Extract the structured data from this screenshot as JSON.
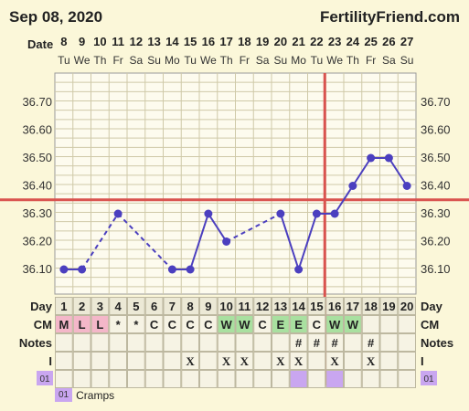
{
  "header": {
    "date_title": "Sep 08, 2020",
    "brand": "FertilityFriend.com"
  },
  "row_labels": {
    "date": "Date",
    "day": "Day",
    "cm": "CM",
    "notes": "Notes",
    "intercourse": "I",
    "symptom_code": "01"
  },
  "colors": {
    "line": "#4b3fbf",
    "coverline": "#d9534f",
    "grid": "#cfc9a8",
    "mucus_m": "#f4b7c9",
    "mucus_l": "#f4b7c9",
    "mucus_w": "#a9e0a0",
    "mucus_e": "#a9e0a0",
    "symptom": "#c9a6f0",
    "background": "#fbf7d9",
    "cell": "#f6f3e4"
  },
  "legend": {
    "code": "01",
    "label": "Cramps"
  },
  "chart_data": {
    "type": "line",
    "dates": [
      "8",
      "9",
      "10",
      "11",
      "12",
      "13",
      "14",
      "15",
      "16",
      "17",
      "18",
      "19",
      "20",
      "21",
      "22",
      "23",
      "24",
      "25",
      "26",
      "27"
    ],
    "weekdays": [
      "Tu",
      "We",
      "Th",
      "Fr",
      "Sa",
      "Su",
      "Mo",
      "Tu",
      "We",
      "Th",
      "Fr",
      "Sa",
      "Su",
      "Mo",
      "Tu",
      "We",
      "Th",
      "Fr",
      "Sa",
      "Su"
    ],
    "cycle_days": [
      "1",
      "2",
      "3",
      "4",
      "5",
      "6",
      "7",
      "8",
      "9",
      "10",
      "11",
      "12",
      "13",
      "14",
      "15",
      "16",
      "17",
      "18",
      "19",
      "20"
    ],
    "temperatures": [
      36.1,
      36.1,
      null,
      36.3,
      null,
      null,
      36.1,
      36.1,
      36.3,
      36.2,
      null,
      null,
      36.3,
      36.1,
      36.3,
      36.3,
      36.4,
      36.5,
      36.5,
      36.4
    ],
    "y_ticks": [
      "36.70",
      "36.60",
      "36.50",
      "36.40",
      "36.30",
      "36.20",
      "36.10"
    ],
    "ylim": [
      36.05,
      36.75
    ],
    "coverline": 36.35,
    "ovulation_day": 16,
    "cervical_mucus": [
      "M",
      "L",
      "L",
      "*",
      "*",
      "C",
      "C",
      "C",
      "C",
      "W",
      "W",
      "C",
      "E",
      "E",
      "C",
      "W",
      "W",
      "",
      "",
      ""
    ],
    "notes": [
      "",
      "",
      "",
      "",
      "",
      "",
      "",
      "",
      "",
      "",
      "",
      "",
      "",
      "#",
      "#",
      "#",
      "",
      "#",
      "",
      ""
    ],
    "intercourse": [
      "",
      "",
      "",
      "",
      "",
      "",
      "",
      "X",
      "",
      "X",
      "X",
      "",
      "X",
      "X",
      "",
      "X",
      "",
      "X",
      "",
      ""
    ],
    "symptoms": [
      "",
      "",
      "",
      "",
      "",
      "",
      "",
      "",
      "",
      "",
      "",
      "",
      "",
      "01",
      "",
      "01",
      "",
      "",
      "",
      ""
    ]
  }
}
